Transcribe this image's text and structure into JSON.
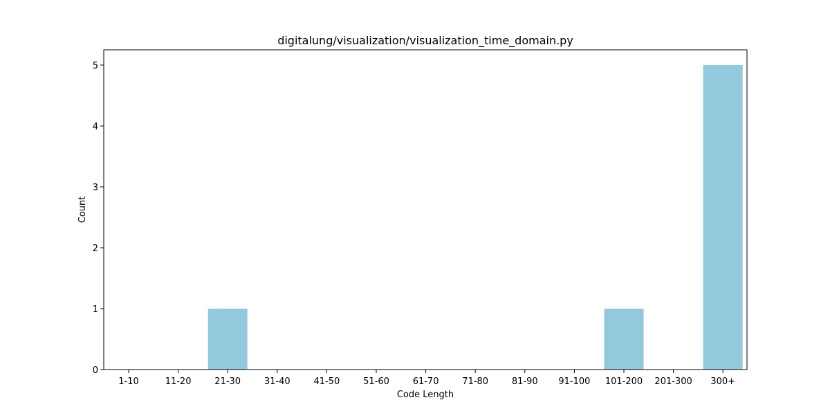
{
  "chart_data": {
    "type": "bar",
    "title": "digitalung/visualization/visualization_time_domain.py",
    "xlabel": "Code Length",
    "ylabel": "Count",
    "categories": [
      "1-10",
      "11-20",
      "21-30",
      "31-40",
      "41-50",
      "51-60",
      "61-70",
      "71-80",
      "81-90",
      "91-100",
      "101-200",
      "201-300",
      "300+"
    ],
    "values": [
      0,
      0,
      1,
      0,
      0,
      0,
      0,
      0,
      0,
      0,
      1,
      0,
      5
    ],
    "yticks": [
      0,
      1,
      2,
      3,
      4,
      5
    ],
    "ylim": [
      0,
      5.25
    ],
    "grid": false,
    "bar_color": "#93c9dd"
  }
}
